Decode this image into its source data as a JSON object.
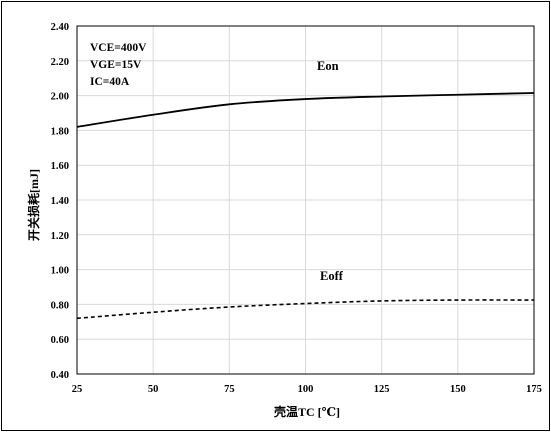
{
  "chart_data": {
    "type": "line",
    "title": "",
    "xlabel": "壳温TC [℃]",
    "ylabel": "开关损耗[mJ]",
    "xlim": [
      25,
      175
    ],
    "ylim": [
      0.4,
      2.4
    ],
    "xticks": [
      "25",
      "50",
      "75",
      "100",
      "125",
      "150",
      "175"
    ],
    "yticks": [
      "0.40",
      "0.60",
      "0.80",
      "1.00",
      "1.20",
      "1.40",
      "1.60",
      "1.80",
      "2.00",
      "2.20",
      "2.40"
    ],
    "grid": true,
    "legend": "none",
    "annotations": [
      "VCE=400V",
      "VGE=15V",
      "IC=40A"
    ],
    "x": [
      25,
      50,
      75,
      100,
      125,
      150,
      175
    ],
    "series": [
      {
        "name": "Eon",
        "style": "solid",
        "color": "#000000",
        "values": [
          1.82,
          1.89,
          1.95,
          1.98,
          1.995,
          2.005,
          2.015
        ]
      },
      {
        "name": "Eoff",
        "style": "dashed",
        "color": "#000000",
        "values": [
          0.72,
          0.755,
          0.785,
          0.805,
          0.82,
          0.825,
          0.825
        ]
      }
    ]
  }
}
